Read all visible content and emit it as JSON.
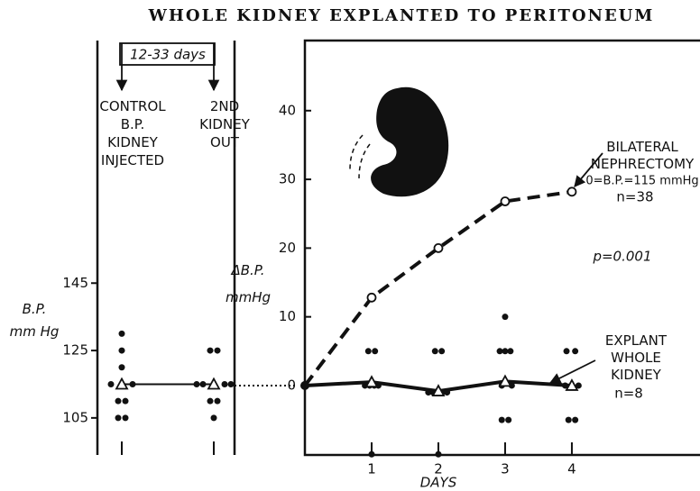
{
  "chart_data": [
    {
      "type": "scatter",
      "title": "WHOLE KIDNEY EXPLANTED TO PERITONEUM",
      "ylabel": "B.P.\nmm Hg",
      "interval": "12-33 days",
      "categories": [
        "CONTROL\nB.P.\nKIDNEY\nINJECTED",
        "2ND\nKIDNEY\nOUT"
      ],
      "values": [
        [
          130,
          125,
          120,
          115,
          115,
          110,
          110,
          105,
          105
        ],
        [
          125,
          125,
          115,
          115,
          115,
          115,
          110,
          110,
          105
        ]
      ],
      "means": [
        115,
        115
      ],
      "ylim": [
        94,
        217
      ],
      "yticks": [
        105,
        125,
        145
      ]
    },
    {
      "type": "line",
      "ylabel": "ΔB.P.\nmmHg",
      "xlabel": "DAYS",
      "annotation": "p=0.001",
      "x": [
        0,
        1,
        2,
        3,
        4
      ],
      "xlim": [
        0,
        5.92
      ],
      "xticks": [
        1,
        2,
        3,
        4
      ],
      "ylim": [
        -10.1,
        50.2
      ],
      "yticks": [
        0,
        10,
        20,
        30,
        40
      ],
      "series": [
        {
          "name": "BILATERAL\nNEPHRECTOMY",
          "note": "0=B.P.=115 mmHg",
          "n": "n=38",
          "color": "#111111",
          "dashed": true,
          "marker": "circle",
          "values": [
            0,
            12.8,
            20,
            26.8,
            28.2
          ]
        },
        {
          "name": "EXPLANT\nWHOLE\nKIDNEY",
          "n": "n=8",
          "color": "#111111",
          "dashed": false,
          "marker": "triangle",
          "values": [
            0,
            0.5,
            -0.8,
            0.6,
            0
          ]
        }
      ],
      "dots": {
        "x": [
          0.95,
          1.05,
          0.9,
          0.97,
          1.04,
          1.1,
          1.0,
          1.95,
          2.05,
          1.85,
          1.92,
          1.99,
          2.06,
          2.13,
          2.0,
          3.0,
          2.92,
          3.0,
          3.08,
          2.95,
          3.1,
          2.95,
          3.05,
          3.92,
          4.05,
          3.9,
          4.1,
          3.95,
          4.05
        ],
        "y": [
          5,
          5,
          0,
          0,
          0,
          0,
          -10,
          5,
          5,
          -1,
          -1,
          -1,
          -1,
          -1,
          -10,
          10,
          5,
          5,
          5,
          0,
          0,
          -5,
          -5,
          5,
          5,
          0,
          0,
          -5,
          -5
        ]
      }
    }
  ]
}
